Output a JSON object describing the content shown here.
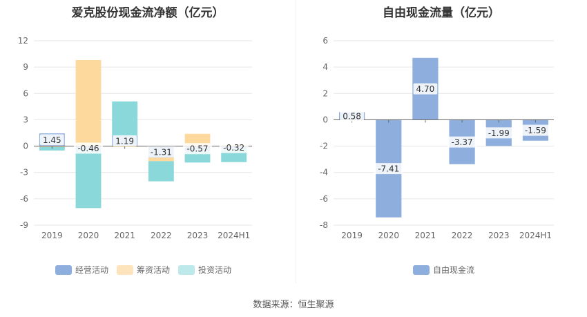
{
  "colors": {
    "operating": "#8eaedd",
    "financing": "#fed99d",
    "investing": "#8ad8da",
    "free": "#8eaedd",
    "grid": "#e6e6e6",
    "axis": "#999999",
    "label_bg": "#ffffff"
  },
  "source_label": "数据来源：恒生聚源",
  "chart_data": [
    {
      "type": "bar",
      "stacked": true,
      "title": "爱克股份现金流净额（亿元）",
      "categories": [
        "2019",
        "2020",
        "2021",
        "2022",
        "2023",
        "2024H1"
      ],
      "ylim": [
        -9,
        12
      ],
      "yticks": [
        12,
        9,
        6,
        3,
        0,
        -3,
        -6,
        -9
      ],
      "grid": true,
      "legend_position": "bottom",
      "series": [
        {
          "name": "经营活动",
          "color_key": "operating",
          "values": [
            1.45,
            -0.46,
            1.19,
            -1.31,
            -0.57,
            -0.32
          ]
        },
        {
          "name": "筹资活动",
          "color_key": "financing",
          "values": [
            -0.1,
            9.8,
            -0.1,
            -0.4,
            1.4,
            0.1
          ]
        },
        {
          "name": "投资活动",
          "color_key": "investing",
          "values": [
            -0.4,
            -6.6,
            3.9,
            -2.3,
            -1.3,
            -1.5
          ]
        }
      ],
      "data_labels": [
        "1.45",
        "-0.46",
        "1.19",
        "-1.31",
        "-0.57",
        "-0.32"
      ]
    },
    {
      "type": "bar",
      "title": "自由现金流量（亿元）",
      "categories": [
        "2019",
        "2020",
        "2021",
        "2022",
        "2023",
        "2024H1"
      ],
      "ylim": [
        -8,
        6
      ],
      "yticks": [
        6,
        4,
        2,
        0,
        -2,
        -4,
        -6,
        -8
      ],
      "grid": true,
      "legend_position": "bottom",
      "series": [
        {
          "name": "自由现金流",
          "color_key": "free",
          "values": [
            0.58,
            -7.41,
            4.7,
            -3.37,
            -1.99,
            -1.59
          ]
        }
      ],
      "data_labels": [
        "0.58",
        "-7.41",
        "4.70",
        "-3.37",
        "-1.99",
        "-1.59"
      ]
    }
  ]
}
